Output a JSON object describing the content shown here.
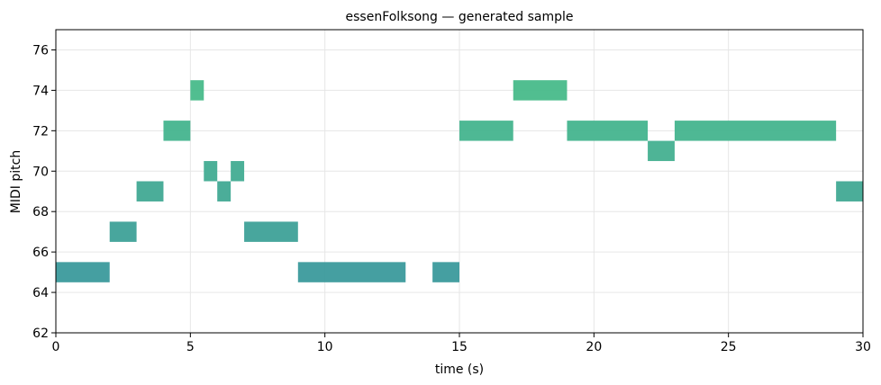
{
  "chart_data": {
    "type": "pianoroll",
    "title": "essenFolksong — generated sample",
    "xlabel": "time (s)",
    "ylabel": "MIDI pitch",
    "xlim": [
      0,
      30
    ],
    "ylim": [
      62,
      77
    ],
    "xticks": [
      0,
      5,
      10,
      15,
      20,
      25,
      30
    ],
    "yticks": [
      62,
      64,
      66,
      68,
      70,
      72,
      74,
      76
    ],
    "grid": true,
    "colors": {
      "low": "#3b9a9c",
      "high": "#48bb8a",
      "axis": "#000000",
      "grid": "#e6e6e6"
    },
    "notes": [
      {
        "start": 0,
        "end": 2,
        "pitch": 65
      },
      {
        "start": 2,
        "end": 3,
        "pitch": 67
      },
      {
        "start": 3,
        "end": 4,
        "pitch": 69
      },
      {
        "start": 4,
        "end": 5,
        "pitch": 72
      },
      {
        "start": 5,
        "end": 5.5,
        "pitch": 74
      },
      {
        "start": 5.5,
        "end": 6,
        "pitch": 70
      },
      {
        "start": 6,
        "end": 6.5,
        "pitch": 69
      },
      {
        "start": 6.5,
        "end": 7,
        "pitch": 70
      },
      {
        "start": 7,
        "end": 9,
        "pitch": 67
      },
      {
        "start": 9,
        "end": 13,
        "pitch": 65
      },
      {
        "start": 14,
        "end": 15,
        "pitch": 65
      },
      {
        "start": 15,
        "end": 17,
        "pitch": 72
      },
      {
        "start": 17,
        "end": 19,
        "pitch": 74
      },
      {
        "start": 19,
        "end": 22,
        "pitch": 72
      },
      {
        "start": 22,
        "end": 23,
        "pitch": 71
      },
      {
        "start": 23,
        "end": 29,
        "pitch": 72
      },
      {
        "start": 29,
        "end": 30,
        "pitch": 69
      }
    ]
  }
}
